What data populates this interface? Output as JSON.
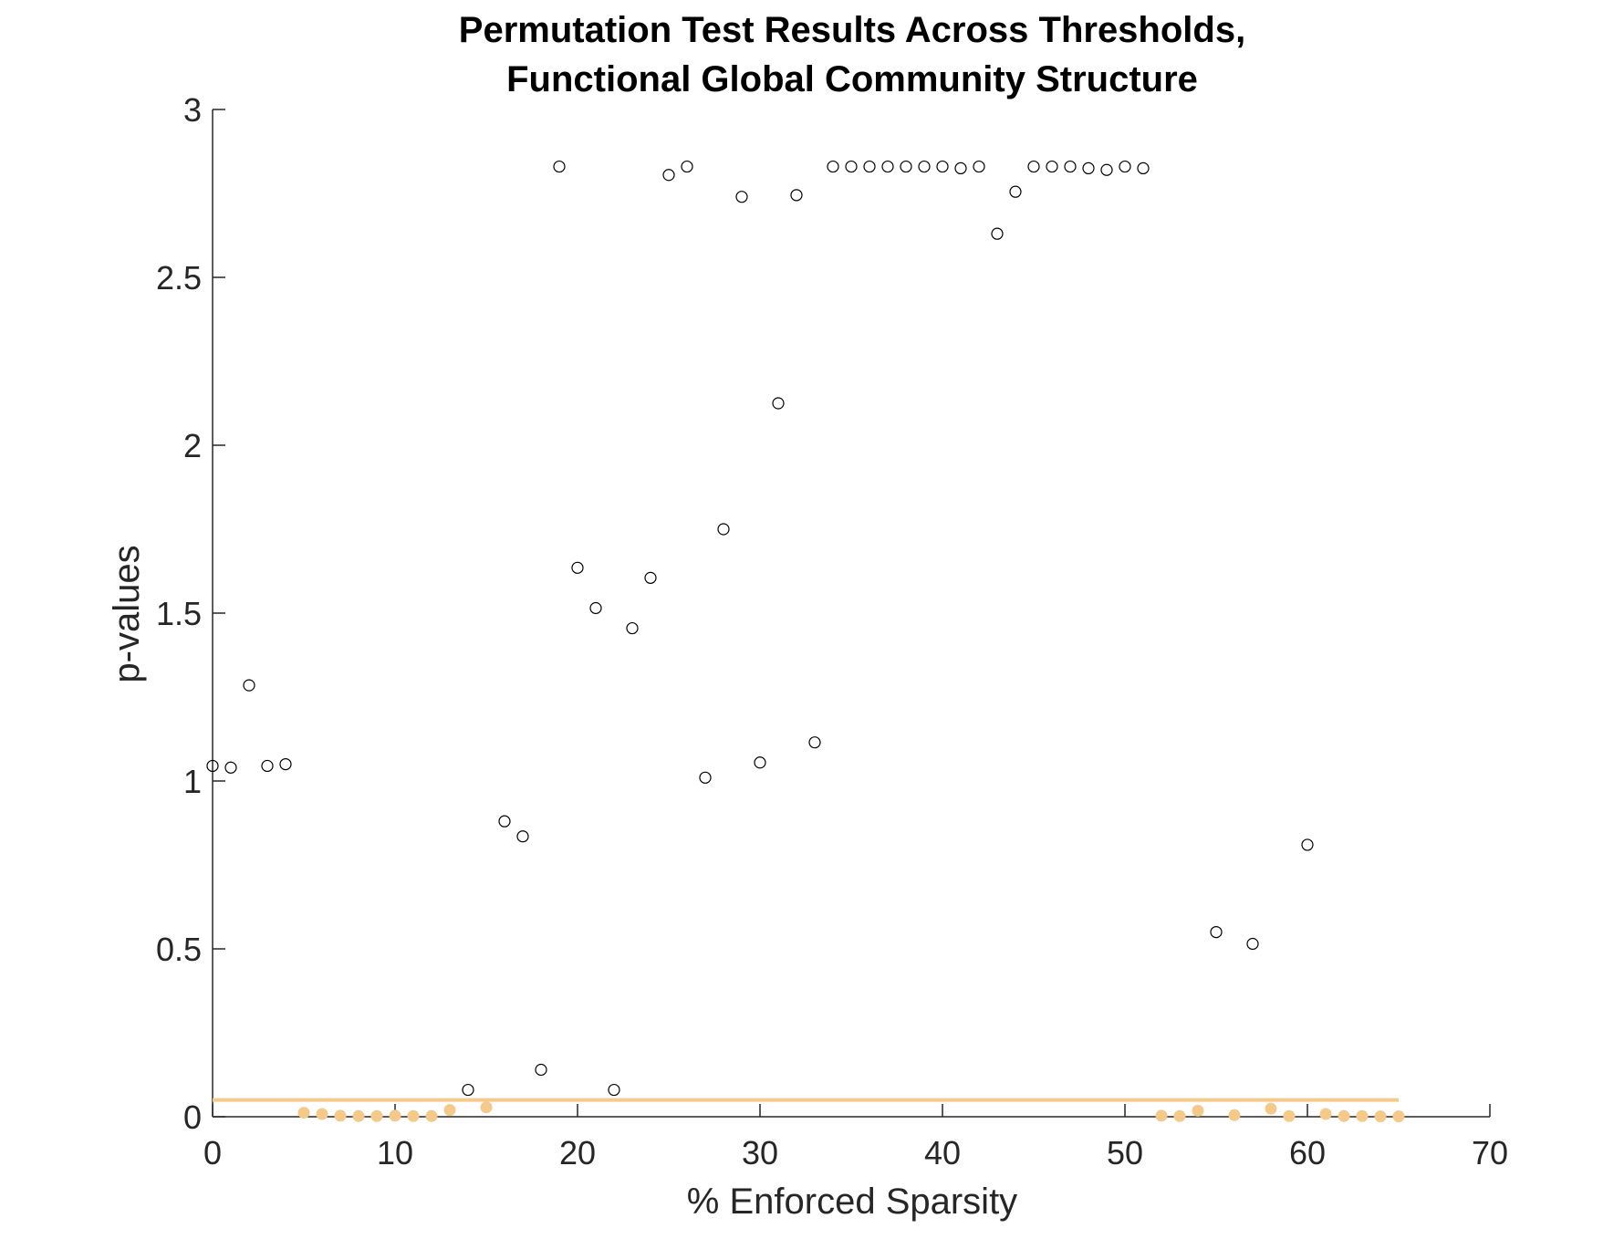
{
  "chart_data": {
    "type": "scatter",
    "title": [
      "Permutation Test Results Across Thresholds,",
      "Functional Global Community Structure"
    ],
    "xlabel": "% Enforced Sparsity",
    "ylabel": "p-values",
    "xlim": [
      0,
      70
    ],
    "ylim": [
      0,
      3
    ],
    "xticks": [
      0,
      10,
      20,
      30,
      40,
      50,
      60,
      70
    ],
    "yticks": [
      0,
      0.5,
      1,
      1.5,
      2,
      2.5,
      3
    ],
    "xtick_labels": [
      "0",
      "10",
      "20",
      "30",
      "40",
      "50",
      "60",
      "70"
    ],
    "ytick_labels": [
      "0",
      "0.5",
      "1",
      "1.5",
      "2",
      "2.5",
      "3"
    ],
    "grid": false,
    "legend": "none",
    "significance_line": {
      "y": 0.05,
      "x_range": [
        0,
        65
      ],
      "color": "#F5C98A"
    },
    "series": [
      {
        "style": "open-circle",
        "color": "#000000",
        "points": [
          [
            0,
            1.045
          ],
          [
            1,
            1.04
          ],
          [
            2,
            1.285
          ],
          [
            3,
            1.045
          ],
          [
            4,
            1.05
          ],
          [
            14,
            0.08
          ],
          [
            16,
            0.88
          ],
          [
            17,
            0.835
          ],
          [
            18,
            0.14
          ],
          [
            19,
            2.83
          ],
          [
            20,
            1.635
          ],
          [
            21,
            1.515
          ],
          [
            22,
            0.08
          ],
          [
            23,
            1.455
          ],
          [
            24,
            1.605
          ],
          [
            25,
            2.805
          ],
          [
            26,
            2.83
          ],
          [
            27,
            1.01
          ],
          [
            28,
            1.75
          ],
          [
            29,
            2.74
          ],
          [
            30,
            1.055
          ],
          [
            31,
            2.125
          ],
          [
            32,
            2.745
          ],
          [
            33,
            1.115
          ],
          [
            34,
            2.83
          ],
          [
            35,
            2.83
          ],
          [
            36,
            2.83
          ],
          [
            37,
            2.83
          ],
          [
            38,
            2.83
          ],
          [
            39,
            2.83
          ],
          [
            40,
            2.83
          ],
          [
            41,
            2.825
          ],
          [
            42,
            2.83
          ],
          [
            43,
            2.63
          ],
          [
            44,
            2.755
          ],
          [
            45,
            2.83
          ],
          [
            46,
            2.83
          ],
          [
            47,
            2.83
          ],
          [
            48,
            2.825
          ],
          [
            49,
            2.82
          ],
          [
            50,
            2.83
          ],
          [
            51,
            2.825
          ],
          [
            55,
            0.55
          ],
          [
            57,
            0.515
          ],
          [
            60,
            0.81
          ]
        ]
      },
      {
        "style": "filled-circle",
        "color": "#F5C98A",
        "points": [
          [
            5,
            0.012
          ],
          [
            6,
            0.008
          ],
          [
            7,
            0.003
          ],
          [
            8,
            0.002
          ],
          [
            9,
            0.002
          ],
          [
            10,
            0.003
          ],
          [
            11,
            0.002
          ],
          [
            12,
            0.002
          ],
          [
            13,
            0.02
          ],
          [
            15,
            0.028
          ],
          [
            52,
            0.003
          ],
          [
            53,
            0.002
          ],
          [
            54,
            0.018
          ],
          [
            56,
            0.005
          ],
          [
            58,
            0.024
          ],
          [
            59,
            0.002
          ],
          [
            61,
            0.008
          ],
          [
            62,
            0.002
          ],
          [
            63,
            0.002
          ],
          [
            64,
            0.001
          ],
          [
            65,
            0.001
          ]
        ]
      }
    ]
  }
}
